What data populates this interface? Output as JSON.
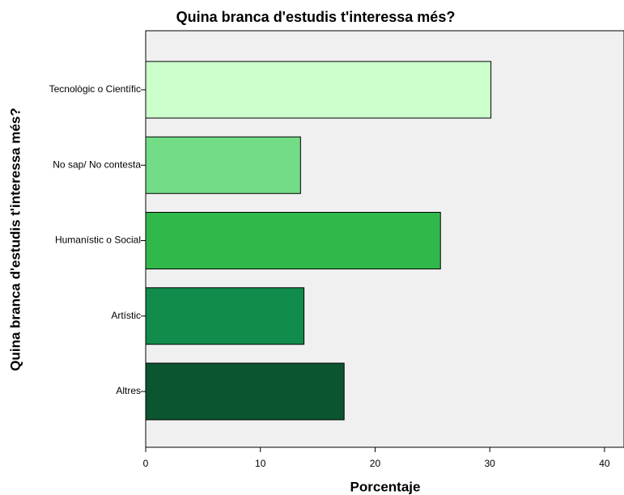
{
  "chart_data": {
    "type": "bar",
    "orientation": "horizontal",
    "title": "Quina branca d'estudis t'interessa més?",
    "xlabel": "Porcentaje",
    "ylabel": "Quina branca d'estudis t'interessa més?",
    "categories": [
      "Tecnològic o Científic",
      "No sap/ No contesta",
      "Humanístic o Social",
      "Artístic",
      "Altres"
    ],
    "values": [
      30.1,
      13.5,
      25.7,
      13.8,
      17.3
    ],
    "colors": [
      "#ccffcc",
      "#72dc86",
      "#31b84b",
      "#118c4a",
      "#0b5630"
    ],
    "xlim": [
      0,
      41.7
    ],
    "xticks": [
      0,
      10,
      20,
      30,
      40
    ],
    "grid": false
  }
}
